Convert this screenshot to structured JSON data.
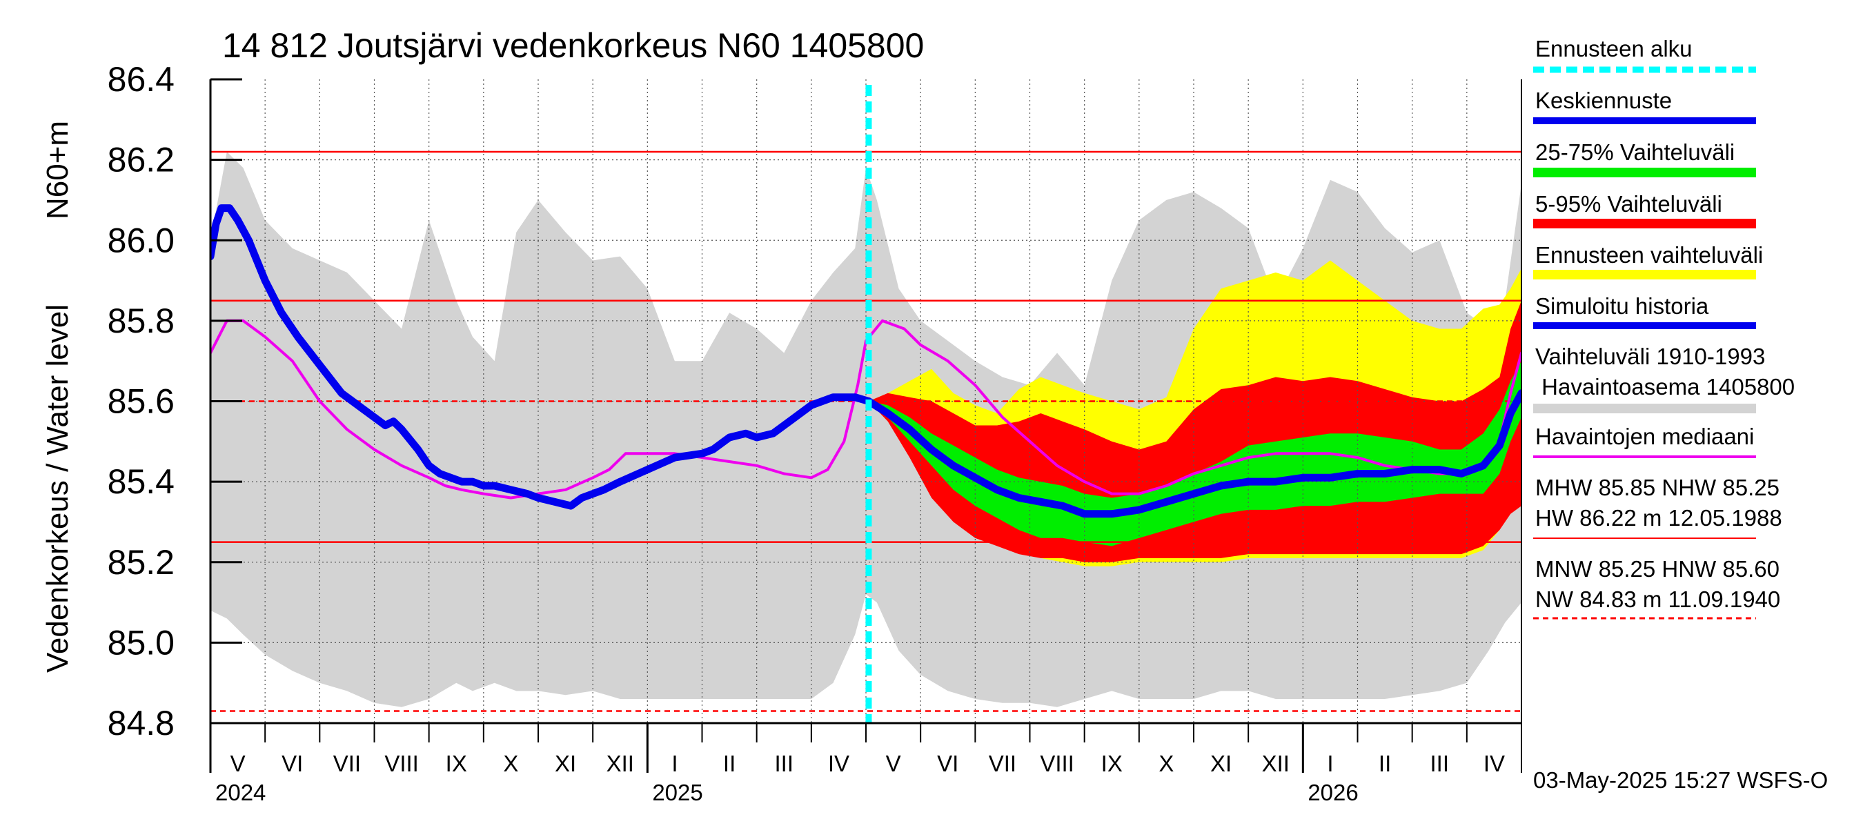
{
  "chart_data": {
    "type": "area",
    "title": "14 812 Joutsjärvi vedenkorkeus N60 1405800",
    "ylabel_main": "Vedenkorkeus / Water level",
    "ylabel_unit": "N60+m",
    "ylim": [
      84.8,
      86.4
    ],
    "yticks": [
      84.8,
      85.0,
      85.2,
      85.4,
      85.6,
      85.8,
      86.0,
      86.2,
      86.4
    ],
    "ytick_labels": [
      "84.8",
      "85.0",
      "85.2",
      "85.4",
      "85.6",
      "85.8",
      "86.0",
      "86.2",
      "86.4"
    ],
    "x_range_months": [
      0,
      24
    ],
    "x_start": "2024-05-01",
    "month_labels": [
      "V",
      "VI",
      "VII",
      "VIII",
      "IX",
      "X",
      "XI",
      "XII",
      "I",
      "II",
      "III",
      "IV",
      "V",
      "VI",
      "VII",
      "VIII",
      "IX",
      "X",
      "XI",
      "XII",
      "I",
      "II",
      "III",
      "IV"
    ],
    "year_labels": [
      {
        "label": "2024",
        "month": 0
      },
      {
        "label": "2025",
        "month": 8
      },
      {
        "label": "2026",
        "month": 20
      }
    ],
    "forecast_start_month": 12.05,
    "reference_lines": [
      {
        "name": "HW",
        "value": 86.22,
        "style": "solid"
      },
      {
        "name": "MHW",
        "value": 85.85,
        "style": "solid"
      },
      {
        "name": "HNW",
        "value": 85.6,
        "style": "dashed"
      },
      {
        "name": "MNW",
        "value": 85.25,
        "style": "solid"
      },
      {
        "name": "NW",
        "value": 84.83,
        "style": "dashed"
      }
    ],
    "series": [
      {
        "name": "Vaihteluväli 1910-1993 Havaintoasema 1405800",
        "kind": "band",
        "color": "#d3d3d3",
        "x": [
          0,
          0.3,
          0.6,
          1.0,
          1.5,
          2.0,
          2.5,
          3.0,
          3.5,
          4.0,
          4.5,
          4.8,
          5.2,
          5.6,
          6.0,
          6.5,
          7.0,
          7.5,
          8.0,
          8.5,
          9.0,
          9.5,
          10.0,
          10.5,
          11.0,
          11.4,
          11.8,
          12.0,
          12.2,
          12.6,
          13.0,
          13.5,
          14.0,
          14.5,
          15.0,
          15.5,
          16.0,
          16.5,
          17.0,
          17.5,
          18.0,
          18.5,
          19.0,
          19.5,
          20.0,
          20.5,
          21.0,
          21.5,
          22.0,
          22.5,
          23.0,
          23.4,
          23.7,
          24.0
        ],
        "upper": [
          86.0,
          86.22,
          86.18,
          86.05,
          85.98,
          85.95,
          85.92,
          85.85,
          85.78,
          86.05,
          85.85,
          85.76,
          85.7,
          86.02,
          86.1,
          86.02,
          85.95,
          85.96,
          85.88,
          85.7,
          85.7,
          85.82,
          85.78,
          85.72,
          85.85,
          85.92,
          85.98,
          86.18,
          86.1,
          85.88,
          85.8,
          85.75,
          85.7,
          85.66,
          85.64,
          85.72,
          85.64,
          85.9,
          86.05,
          86.1,
          86.12,
          86.08,
          86.03,
          85.85,
          85.98,
          86.15,
          86.12,
          86.03,
          85.97,
          86.0,
          85.82,
          85.78,
          85.85,
          86.14
        ],
        "lower": [
          85.08,
          85.06,
          85.02,
          84.97,
          84.93,
          84.9,
          84.88,
          84.85,
          84.84,
          84.86,
          84.9,
          84.88,
          84.9,
          84.88,
          84.88,
          84.87,
          84.88,
          84.86,
          84.86,
          84.86,
          84.86,
          84.86,
          84.86,
          84.86,
          84.86,
          84.9,
          85.02,
          85.12,
          85.1,
          84.98,
          84.92,
          84.88,
          84.86,
          84.85,
          84.85,
          84.84,
          84.86,
          84.88,
          84.86,
          84.86,
          84.86,
          84.88,
          84.88,
          84.86,
          84.86,
          84.86,
          84.86,
          84.86,
          84.87,
          84.88,
          84.9,
          84.98,
          85.05,
          85.1
        ]
      },
      {
        "name": "Ennusteen vaihteluväli",
        "kind": "band",
        "color": "#ffff00",
        "x": [
          12.05,
          12.4,
          12.8,
          13.2,
          13.6,
          14.0,
          14.4,
          14.8,
          15.2,
          15.6,
          16.0,
          16.5,
          17.0,
          17.5,
          18.0,
          18.5,
          19.0,
          19.5,
          20.0,
          20.5,
          21.0,
          21.5,
          22.0,
          22.5,
          22.9,
          23.3,
          23.6,
          23.8,
          24.0
        ],
        "upper": [
          85.6,
          85.62,
          85.65,
          85.68,
          85.62,
          85.59,
          85.57,
          85.63,
          85.66,
          85.64,
          85.62,
          85.6,
          85.58,
          85.61,
          85.78,
          85.88,
          85.9,
          85.92,
          85.9,
          85.95,
          85.9,
          85.85,
          85.8,
          85.78,
          85.78,
          85.83,
          85.84,
          85.88,
          85.93
        ],
        "lower": [
          85.6,
          85.56,
          85.49,
          85.41,
          85.34,
          85.29,
          85.26,
          85.23,
          85.21,
          85.2,
          85.19,
          85.19,
          85.2,
          85.2,
          85.2,
          85.2,
          85.21,
          85.21,
          85.21,
          85.21,
          85.21,
          85.21,
          85.21,
          85.21,
          85.21,
          85.23,
          85.28,
          85.34,
          85.4
        ]
      },
      {
        "name": "5-95% Vaihteluväli",
        "kind": "band",
        "color": "#ff0000",
        "x": [
          12.05,
          12.4,
          12.8,
          13.2,
          13.6,
          14.0,
          14.4,
          14.8,
          15.2,
          15.6,
          16.0,
          16.5,
          17.0,
          17.5,
          18.0,
          18.5,
          19.0,
          19.5,
          20.0,
          20.5,
          21.0,
          21.5,
          22.0,
          22.5,
          22.9,
          23.3,
          23.6,
          23.8,
          24.0
        ],
        "upper": [
          85.6,
          85.62,
          85.61,
          85.6,
          85.57,
          85.54,
          85.54,
          85.55,
          85.57,
          85.55,
          85.53,
          85.5,
          85.48,
          85.5,
          85.58,
          85.63,
          85.64,
          85.66,
          85.65,
          85.66,
          85.65,
          85.63,
          85.61,
          85.6,
          85.6,
          85.63,
          85.66,
          85.78,
          85.85
        ],
        "lower": [
          85.6,
          85.55,
          85.46,
          85.36,
          85.3,
          85.26,
          85.24,
          85.22,
          85.21,
          85.21,
          85.2,
          85.2,
          85.21,
          85.21,
          85.21,
          85.21,
          85.22,
          85.22,
          85.22,
          85.22,
          85.22,
          85.22,
          85.22,
          85.22,
          85.22,
          85.24,
          85.28,
          85.32,
          85.34
        ]
      },
      {
        "name": "25-75% Vaihteluväli",
        "kind": "band",
        "color": "#00ee00",
        "x": [
          12.05,
          12.4,
          12.8,
          13.2,
          13.6,
          14.0,
          14.4,
          14.8,
          15.2,
          15.6,
          16.0,
          16.5,
          17.0,
          17.5,
          18.0,
          18.5,
          19.0,
          19.5,
          20.0,
          20.5,
          21.0,
          21.5,
          22.0,
          22.5,
          22.9,
          23.3,
          23.6,
          23.8,
          24.0
        ],
        "upper": [
          85.6,
          85.59,
          85.56,
          85.52,
          85.49,
          85.46,
          85.43,
          85.41,
          85.4,
          85.39,
          85.37,
          85.36,
          85.37,
          85.39,
          85.42,
          85.45,
          85.49,
          85.5,
          85.51,
          85.52,
          85.52,
          85.51,
          85.5,
          85.48,
          85.48,
          85.52,
          85.58,
          85.65,
          85.7
        ],
        "lower": [
          85.6,
          85.56,
          85.5,
          85.44,
          85.38,
          85.34,
          85.31,
          85.28,
          85.26,
          85.26,
          85.25,
          85.24,
          85.26,
          85.28,
          85.3,
          85.32,
          85.33,
          85.33,
          85.34,
          85.34,
          85.35,
          85.35,
          85.36,
          85.37,
          85.37,
          85.37,
          85.42,
          85.5,
          85.56
        ]
      },
      {
        "name": "Havaintojen mediaani",
        "kind": "line",
        "color": "#ee00ee",
        "x": [
          0,
          0.3,
          0.6,
          1.0,
          1.5,
          2.0,
          2.5,
          3.0,
          3.5,
          4.0,
          4.3,
          4.6,
          5.0,
          5.5,
          6.0,
          6.5,
          7.0,
          7.3,
          7.6,
          8.0,
          8.5,
          9.0,
          9.5,
          10.0,
          10.5,
          11.0,
          11.3,
          11.6,
          11.85,
          12.0,
          12.3,
          12.7,
          13.0,
          13.5,
          14.0,
          14.5,
          15.0,
          15.5,
          16.0,
          16.5,
          17.0,
          17.5,
          18.0,
          18.5,
          19.0,
          19.5,
          20.0,
          20.5,
          21.0,
          21.5,
          22.0,
          22.5,
          23.0,
          23.3,
          23.6,
          23.8,
          24.0
        ],
        "values": [
          85.72,
          85.8,
          85.8,
          85.76,
          85.7,
          85.6,
          85.53,
          85.48,
          85.44,
          85.41,
          85.39,
          85.38,
          85.37,
          85.36,
          85.37,
          85.38,
          85.41,
          85.43,
          85.47,
          85.47,
          85.47,
          85.46,
          85.45,
          85.44,
          85.42,
          85.41,
          85.43,
          85.5,
          85.64,
          85.75,
          85.8,
          85.78,
          85.74,
          85.7,
          85.64,
          85.56,
          85.5,
          85.44,
          85.4,
          85.37,
          85.37,
          85.39,
          85.42,
          85.44,
          85.46,
          85.47,
          85.47,
          85.47,
          85.46,
          85.44,
          85.43,
          85.42,
          85.42,
          85.44,
          85.5,
          85.62,
          85.72
        ]
      },
      {
        "name": "Simuloitu historia",
        "kind": "line",
        "color": "#0000ee",
        "x": [
          0,
          0.1,
          0.2,
          0.35,
          0.5,
          0.7,
          1.0,
          1.3,
          1.6,
          2.0,
          2.4,
          2.8,
          3.0,
          3.2,
          3.35,
          3.5,
          3.8,
          4.0,
          4.2,
          4.4,
          4.6,
          4.8,
          5.0,
          5.2,
          5.5,
          5.8,
          6.0,
          6.3,
          6.6,
          6.8,
          7.0,
          7.2,
          7.5,
          8.0,
          8.5,
          9.0,
          9.2,
          9.5,
          9.8,
          10.0,
          10.3,
          10.6,
          11.0,
          11.4,
          11.8,
          12.05
        ],
        "values": [
          85.96,
          86.04,
          86.08,
          86.08,
          86.05,
          86.0,
          85.9,
          85.82,
          85.76,
          85.69,
          85.62,
          85.58,
          85.56,
          85.54,
          85.55,
          85.53,
          85.48,
          85.44,
          85.42,
          85.41,
          85.4,
          85.4,
          85.39,
          85.39,
          85.38,
          85.37,
          85.36,
          85.35,
          85.34,
          85.36,
          85.37,
          85.38,
          85.4,
          85.43,
          85.46,
          85.47,
          85.48,
          85.51,
          85.52,
          85.51,
          85.52,
          85.55,
          85.59,
          85.61,
          85.61,
          85.6
        ]
      },
      {
        "name": "Keskiennuste",
        "kind": "line",
        "color": "#0000ee",
        "x": [
          12.05,
          12.4,
          12.8,
          13.2,
          13.6,
          14.0,
          14.4,
          14.8,
          15.2,
          15.6,
          16.0,
          16.5,
          17.0,
          17.5,
          18.0,
          18.5,
          19.0,
          19.5,
          20.0,
          20.5,
          21.0,
          21.5,
          22.0,
          22.5,
          22.9,
          23.3,
          23.6,
          23.8,
          24.0
        ],
        "values": [
          85.6,
          85.57,
          85.53,
          85.48,
          85.44,
          85.41,
          85.38,
          85.36,
          85.35,
          85.34,
          85.32,
          85.32,
          85.33,
          85.35,
          85.37,
          85.39,
          85.4,
          85.4,
          85.41,
          85.41,
          85.42,
          85.42,
          85.43,
          85.43,
          85.42,
          85.44,
          85.49,
          85.57,
          85.62
        ]
      }
    ]
  },
  "legend": {
    "forecast_start": "Ennusteen alku",
    "mean_forecast": "Keskiennuste",
    "range_25_75": "25-75% Vaihteluväli",
    "range_5_95": "5-95% Vaihteluväli",
    "forecast_range": "Ennusteen vaihteluväli",
    "simulated_history": "Simuloitu historia",
    "hist_range_line1": "Vaihteluväli 1910-1993",
    "hist_range_line2": " Havaintoasema 1405800",
    "observed_median": "Havaintojen mediaani",
    "mhw_line": "MHW  85.85 NHW  85.25",
    "hw_line": "HW  86.22 m 12.05.1988",
    "mnw_line": "MNW  85.25 HNW  85.60",
    "nw_line": "NW  84.83 m 11.09.1940"
  },
  "colors": {
    "forecast_start": "#00ffff",
    "mean_forecast": "#0000ee",
    "range_25_75": "#00ee00",
    "range_5_95": "#ff0000",
    "forecast_range": "#ffff00",
    "simulated_history": "#0000ee",
    "hist_range": "#d3d3d3",
    "observed_median": "#ee00ee",
    "ref_line": "#ff0000"
  },
  "footer": {
    "timestamp": "03-May-2025 15:27 WSFS-O"
  }
}
